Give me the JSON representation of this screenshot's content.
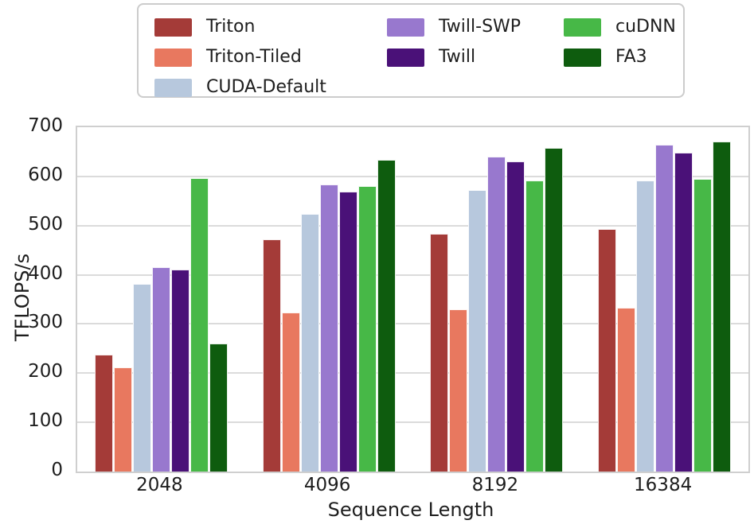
{
  "chart_data": {
    "type": "bar",
    "title": "",
    "xlabel": "Sequence Length",
    "ylabel": "TFLOPS/s",
    "categories": [
      "2048",
      "4096",
      "8192",
      "16384"
    ],
    "series": [
      {
        "name": "Triton",
        "color": "#a43b38",
        "values": [
          237,
          472,
          484,
          493
        ]
      },
      {
        "name": "Triton-Tiled",
        "color": "#e8785f",
        "values": [
          211,
          323,
          330,
          333
        ]
      },
      {
        "name": "CUDA-Default",
        "color": "#b7c8dd",
        "values": [
          381,
          524,
          572,
          592
        ]
      },
      {
        "name": "Twill-SWP",
        "color": "#9878ce",
        "values": [
          416,
          583,
          640,
          665
        ]
      },
      {
        "name": "Twill",
        "color": "#4a1178",
        "values": [
          410,
          569,
          630,
          649
        ]
      },
      {
        "name": "cuDNN",
        "color": "#47b847",
        "values": [
          596,
          580,
          592,
          595
        ]
      },
      {
        "name": "FA3",
        "color": "#0e5c0e",
        "values": [
          260,
          633,
          658,
          671
        ]
      }
    ],
    "ylim": [
      0,
      700
    ],
    "yticks": [
      0,
      100,
      200,
      300,
      400,
      500,
      600,
      700
    ],
    "grid": true,
    "legend_position": "top",
    "legend_columns": [
      [
        "Triton",
        "Triton-Tiled",
        "CUDA-Default"
      ],
      [
        "Twill-SWP",
        "Twill"
      ],
      [
        "cuDNN",
        "FA3"
      ]
    ]
  },
  "style": {
    "text_color": "#1e1e1e",
    "grid_color": "#dbdbdb",
    "spine_color": "#cfcfcf",
    "legend_border_color": "#cccccc",
    "background": "#ffffff"
  }
}
